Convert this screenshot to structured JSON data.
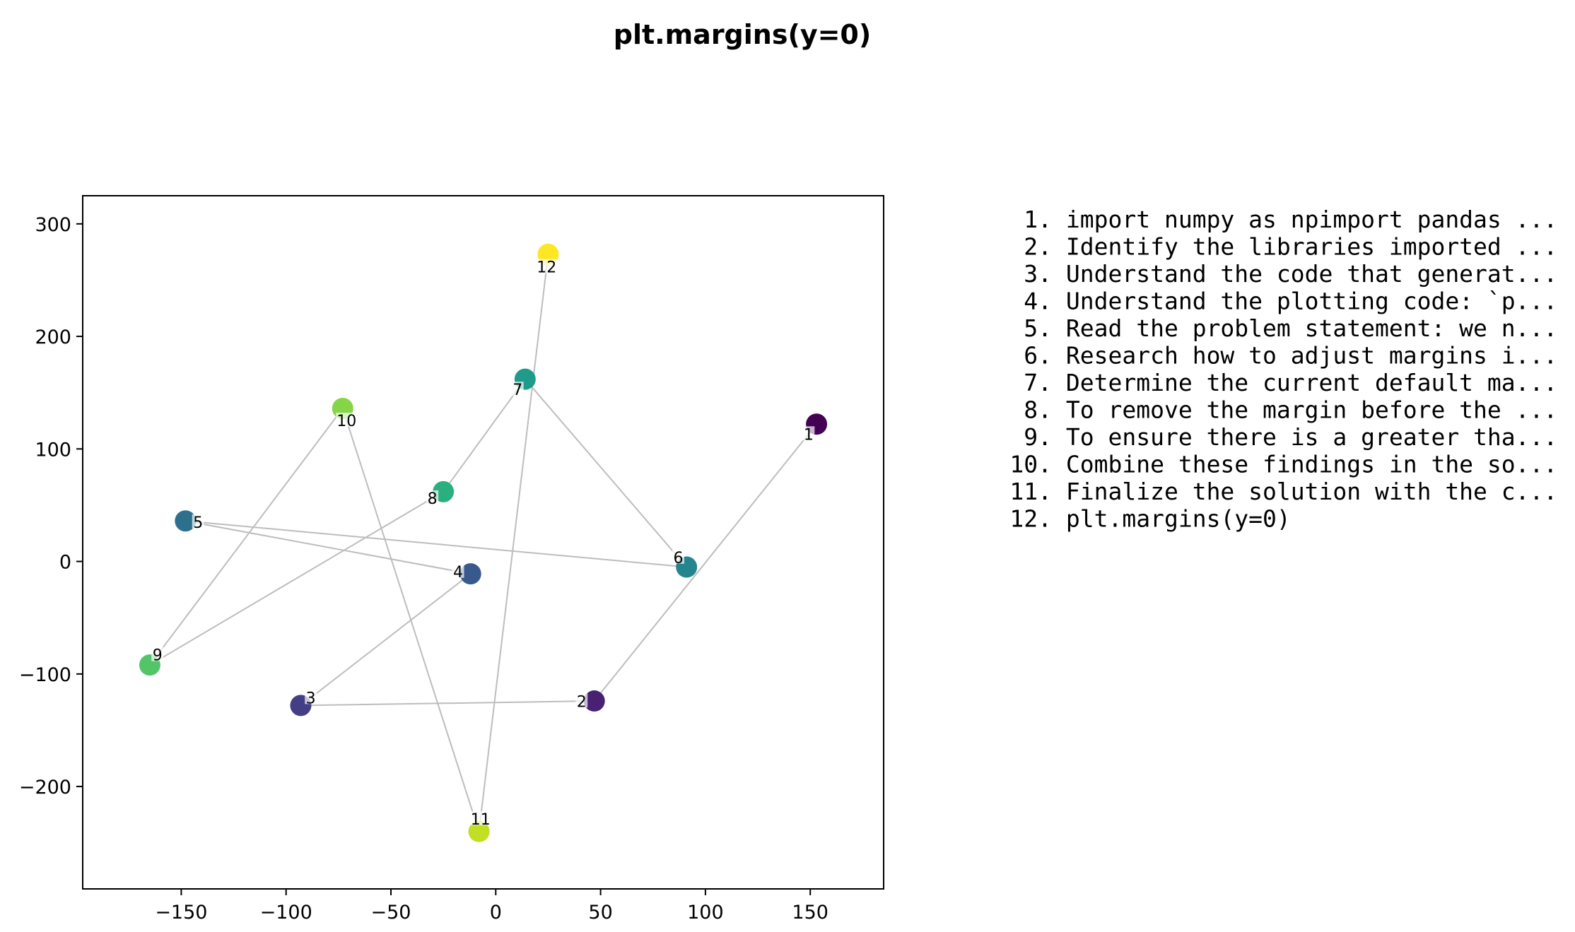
{
  "chart_data": {
    "type": "scatter",
    "title": "plt.margins(y=0)",
    "xlabel": "",
    "ylabel": "",
    "xlim": [
      -197,
      185
    ],
    "ylim": [
      -291,
      325
    ],
    "xticks": [
      -150,
      -100,
      -50,
      0,
      50,
      100,
      150
    ],
    "xtick_labels": [
      "−150",
      "−100",
      "−50",
      "0",
      "50",
      "100",
      "150"
    ],
    "yticks": [
      -200,
      -100,
      0,
      100,
      200,
      300
    ],
    "ytick_labels": [
      "−200",
      "−100",
      "0",
      "100",
      "200",
      "300"
    ],
    "grid": false,
    "colormap": "viridis",
    "line_color": "#bdbdbd",
    "points": [
      {
        "label": "1",
        "x": 153,
        "y": 122,
        "color": "#440154"
      },
      {
        "label": "2",
        "x": 47,
        "y": -124,
        "color": "#482173"
      },
      {
        "label": "3",
        "x": -93,
        "y": -128,
        "color": "#433e85"
      },
      {
        "label": "4",
        "x": -12,
        "y": -11,
        "color": "#38598c"
      },
      {
        "label": "5",
        "x": -148,
        "y": 36,
        "color": "#2d708e"
      },
      {
        "label": "6",
        "x": 91,
        "y": -5,
        "color": "#25858e"
      },
      {
        "label": "7",
        "x": 14,
        "y": 162,
        "color": "#1e9b8a"
      },
      {
        "label": "8",
        "x": -25,
        "y": 62,
        "color": "#2ab07f"
      },
      {
        "label": "9",
        "x": -165,
        "y": -92,
        "color": "#52c569"
      },
      {
        "label": "10",
        "x": -73,
        "y": 136,
        "color": "#86d549"
      },
      {
        "label": "11",
        "x": -8,
        "y": -240,
        "color": "#c2df23"
      },
      {
        "label": "12",
        "x": 25,
        "y": 273,
        "color": "#fde725"
      }
    ]
  },
  "steps": [
    "1. import numpy as npimport pandas ...",
    "2. Identify the libraries imported ...",
    "3. Understand the code that generat...",
    "4. Understand the plotting code: `p...",
    "5. Read the problem statement: we n...",
    "6. Research how to adjust margins i...",
    "7. Determine the current default ma...",
    "8. To remove the margin before the ...",
    "9. To ensure there is a greater tha...",
    "10. Combine these findings in the so...",
    "11. Finalize the solution with the c...",
    "12. plt.margins(y=0)"
  ]
}
